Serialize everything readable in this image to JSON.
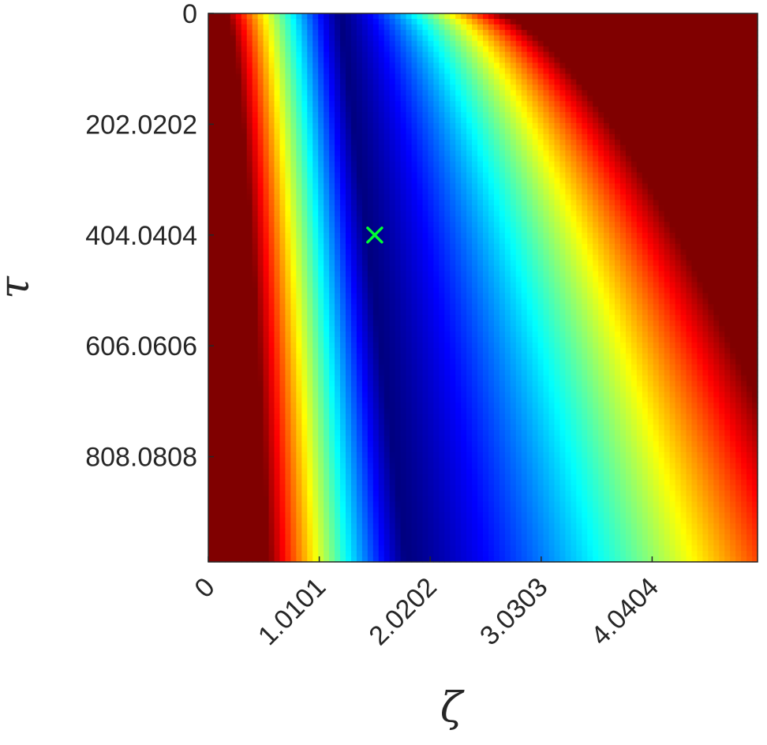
{
  "chart_data": {
    "type": "heatmap",
    "title": "",
    "xlabel": "ζ",
    "ylabel": "τ",
    "colormap": "jet",
    "grid": false,
    "legend": "none",
    "xlim": [
      0,
      5
    ],
    "ylim": [
      0,
      1000
    ],
    "y_direction": "reversed",
    "xticks": [
      0,
      1.0101,
      2.0202,
      3.0303,
      4.0404
    ],
    "xtick_labels": [
      "0",
      "1.0101",
      "2.0202",
      "3.0303",
      "4.0404"
    ],
    "yticks": [
      0,
      202.0202,
      404.0404,
      606.0606,
      808.0808
    ],
    "ytick_labels": [
      "0",
      "202.0202",
      "404.0404",
      "606.0606",
      "808.0808"
    ],
    "grid_size": [
      100,
      100
    ],
    "description_of_field": {
      "low_value_valley_center": "ζ ≈ 1.2 near τ=0, drifting to ζ ≈ 1.8 at τ=1000",
      "left_high_region": "ζ < 0.15 near τ=0, ζ < 0.55 at τ=1000",
      "right_high_region": "boundary moves from ζ ≈ 2.6 near τ=0 to beyond ζ = 5 at τ=1000"
    },
    "marker": {
      "x": 1.515,
      "y": 404.0404,
      "symbol": "x",
      "color": "#00ff33"
    }
  }
}
